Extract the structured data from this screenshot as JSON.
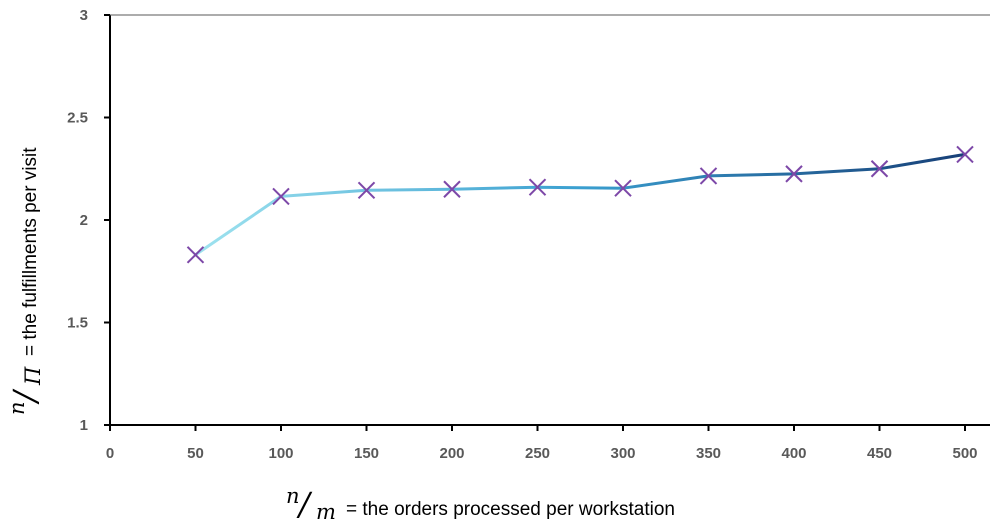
{
  "chart_data": {
    "type": "line",
    "title": "",
    "x": [
      50,
      100,
      150,
      200,
      250,
      300,
      350,
      400,
      450,
      500
    ],
    "series": [
      {
        "values": [
          1.83,
          2.115,
          2.145,
          2.15,
          2.16,
          2.155,
          2.215,
          2.225,
          2.25,
          2.32
        ]
      }
    ],
    "xlim": [
      0,
      500
    ],
    "ylim": [
      1,
      3
    ],
    "x_ticks": [
      "0",
      "50",
      "100",
      "150",
      "200",
      "250",
      "300",
      "350",
      "400",
      "450",
      "500"
    ],
    "y_ticks": [
      "1",
      "1.5",
      "2",
      "2.5",
      "3"
    ],
    "xlabel": {
      "numerator": "n",
      "slash": "/",
      "denominator": "m",
      "text": "= the orders processed per workstation"
    },
    "ylabel": {
      "numerator": "n",
      "slash": "/",
      "denominator": "Π",
      "text": "= the fulfillments per visit"
    },
    "grid": false,
    "legend": "none",
    "colors": {
      "line_start": "#9fe3ef",
      "line_mid": "#3a9fd0",
      "line_end": "#173f77",
      "marker": "#7d48a8",
      "axis": "#000000",
      "tick_text": "#595959"
    }
  }
}
